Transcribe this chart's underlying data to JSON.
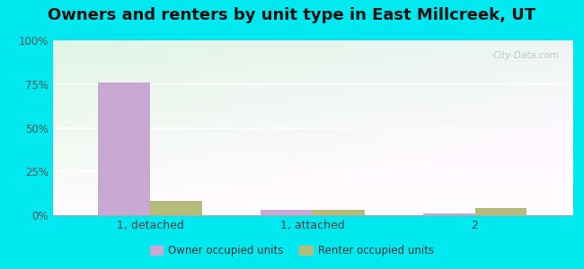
{
  "title": "Owners and renters by unit type in East Millcreek, UT",
  "categories": [
    "1, detached",
    "1, attached",
    "2"
  ],
  "owner_values": [
    76,
    3,
    1
  ],
  "renter_values": [
    8,
    3,
    4
  ],
  "owner_color": "#c9a8d4",
  "renter_color": "#b5bb7a",
  "ylim": [
    0,
    100
  ],
  "yticks": [
    0,
    25,
    50,
    75,
    100
  ],
  "ytick_labels": [
    "0%",
    "25%",
    "50%",
    "75%",
    "100%"
  ],
  "plot_bg_topleft": "#e2f2e8",
  "plot_bg_topright": "#f5fdf8",
  "plot_bg_bottomright": "#ffffff",
  "outer_bg": "#00e8f0",
  "title_fontsize": 13,
  "legend_label_owner": "Owner occupied units",
  "legend_label_renter": "Renter occupied units",
  "bar_width": 0.32,
  "watermark": "City-Data.com"
}
